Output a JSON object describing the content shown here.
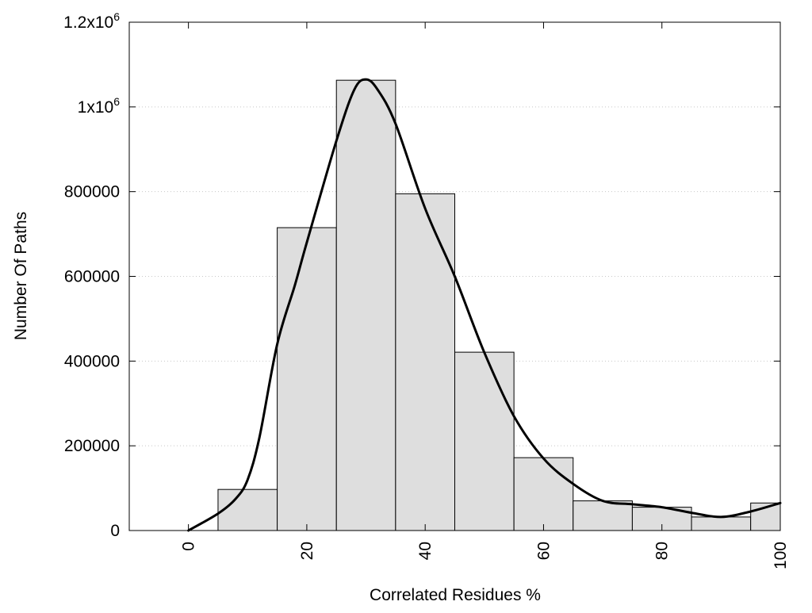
{
  "chart_data": {
    "type": "bar",
    "title": "",
    "xlabel": "Correlated Residues %",
    "ylabel": "Number Of Paths",
    "xlim": [
      -10,
      100
    ],
    "ylim": [
      0,
      1200000
    ],
    "grid": "horizontal dotted",
    "bin_width": 10,
    "bars": [
      {
        "x": 10,
        "value": 97000
      },
      {
        "x": 20,
        "value": 715000
      },
      {
        "x": 30,
        "value": 1063000
      },
      {
        "x": 40,
        "value": 795000
      },
      {
        "x": 50,
        "value": 421000
      },
      {
        "x": 60,
        "value": 172000
      },
      {
        "x": 70,
        "value": 70000
      },
      {
        "x": 80,
        "value": 55000
      },
      {
        "x": 90,
        "value": 32000
      },
      {
        "x": 100,
        "value": 65000
      }
    ],
    "curve": {
      "x": [
        0,
        5,
        8,
        10,
        12,
        15,
        18,
        20,
        25,
        28,
        30,
        32,
        35,
        40,
        45,
        50,
        55,
        60,
        65,
        70,
        75,
        80,
        85,
        90,
        95,
        100
      ],
      "y": [
        0,
        40000,
        75000,
        120000,
        220000,
        440000,
        580000,
        680000,
        920000,
        1040000,
        1065000,
        1040000,
        960000,
        760000,
        600000,
        420000,
        270000,
        170000,
        110000,
        70000,
        62000,
        55000,
        42000,
        32000,
        45000,
        65000
      ]
    },
    "x_ticks": [
      {
        "value": 0,
        "label": "0"
      },
      {
        "value": 20,
        "label": "20"
      },
      {
        "value": 40,
        "label": "40"
      },
      {
        "value": 60,
        "label": "60"
      },
      {
        "value": 80,
        "label": "80"
      },
      {
        "value": 100,
        "label": "100"
      }
    ],
    "y_ticks": [
      {
        "value": 0,
        "label": "0",
        "sup": ""
      },
      {
        "value": 200000,
        "label": "200000",
        "sup": ""
      },
      {
        "value": 400000,
        "label": "400000",
        "sup": ""
      },
      {
        "value": 600000,
        "label": "600000",
        "sup": ""
      },
      {
        "value": 800000,
        "label": "800000",
        "sup": ""
      },
      {
        "value": 1000000,
        "label": "1x10",
        "sup": "6"
      },
      {
        "value": 1200000,
        "label": "1.2x10",
        "sup": "6"
      }
    ],
    "colors": {
      "bar_fill": "#dedede",
      "bar_stroke": "#000000",
      "curve": "#000000",
      "grid": "#c8c8c8"
    }
  }
}
